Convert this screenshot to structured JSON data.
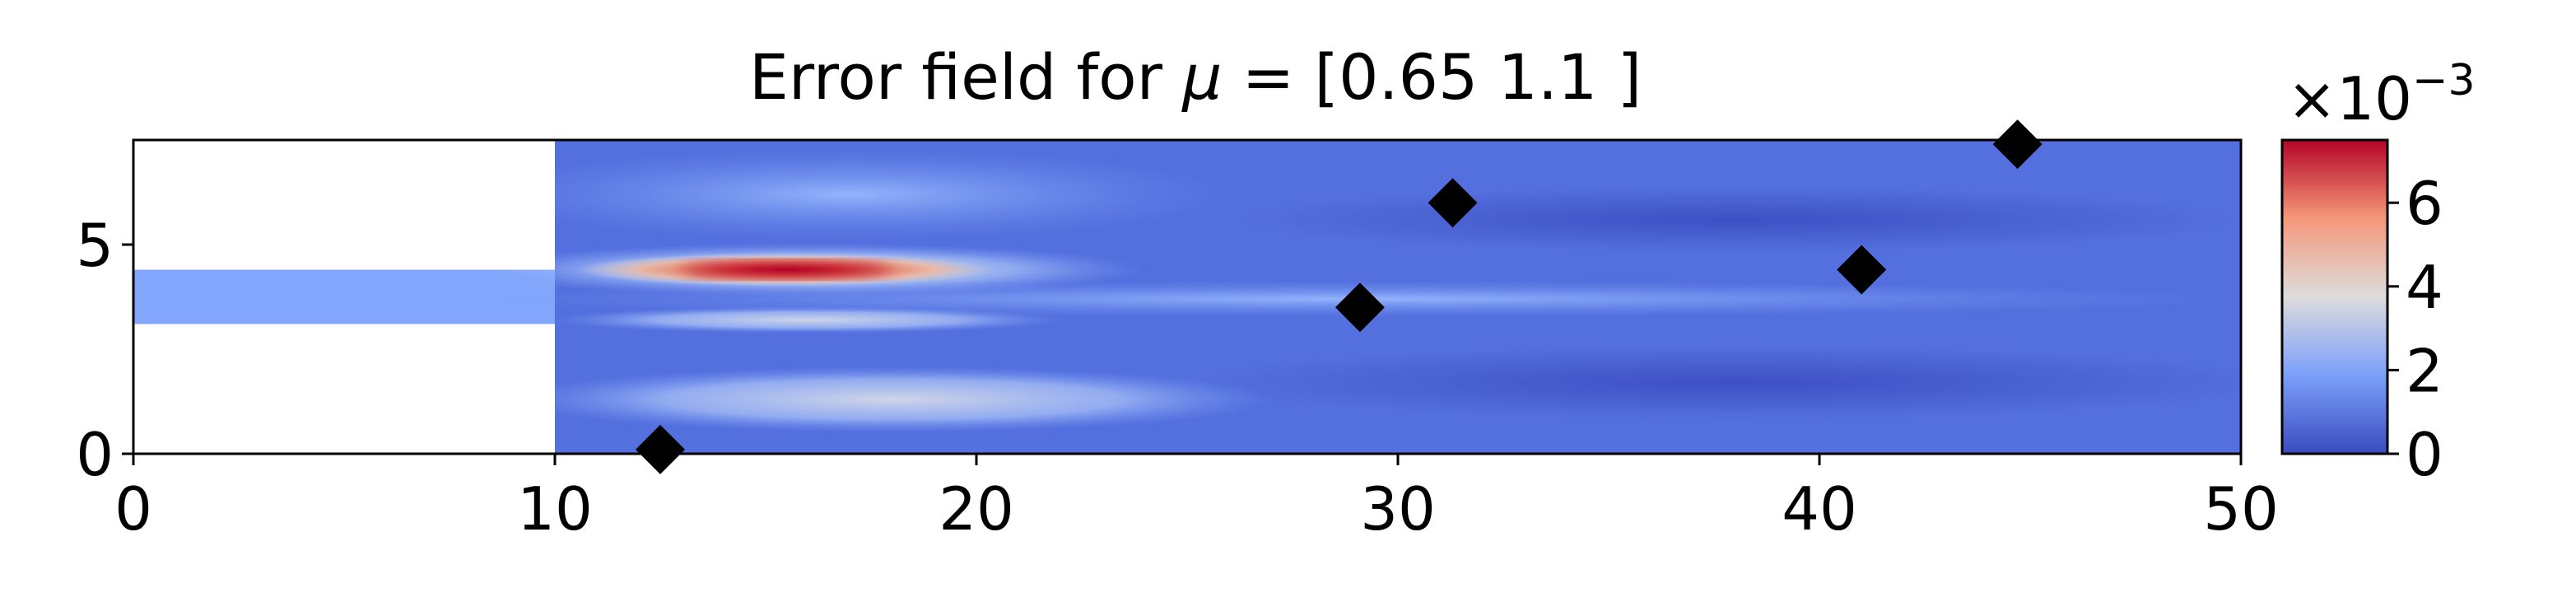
{
  "chart_data": {
    "type": "heatmap",
    "title_prefix": "Error field for ",
    "title_symbol": "μ",
    "title_suffix": " = [0.65 1.1 ]",
    "xlabel": "",
    "ylabel": "",
    "xlim": [
      0,
      50
    ],
    "ylim": [
      0,
      7.5
    ],
    "x_ticks": [
      0,
      10,
      20,
      30,
      40,
      50
    ],
    "y_ticks": [
      0,
      5
    ],
    "grid": false,
    "colormap": "coolwarm",
    "colorbar": {
      "range": [
        0,
        7.5
      ],
      "ticks": [
        0,
        2,
        4,
        6
      ],
      "scale_base": "×10",
      "scale_exponent": "−3"
    },
    "domain_channel": {
      "x": [
        0,
        10
      ],
      "y": [
        3.1,
        4.4
      ]
    },
    "domain_chamber": {
      "x": [
        10,
        50
      ],
      "y": [
        0,
        7.5
      ]
    },
    "sensor_points": [
      {
        "x": 12.5,
        "y": 0.1
      },
      {
        "x": 29.1,
        "y": 3.5
      },
      {
        "x": 31.3,
        "y": 6.0
      },
      {
        "x": 41.0,
        "y": 4.4
      },
      {
        "x": 44.7,
        "y": 7.4
      }
    ],
    "error_peak": {
      "x": 15.5,
      "y": 4.4,
      "value": 7.2
    }
  }
}
